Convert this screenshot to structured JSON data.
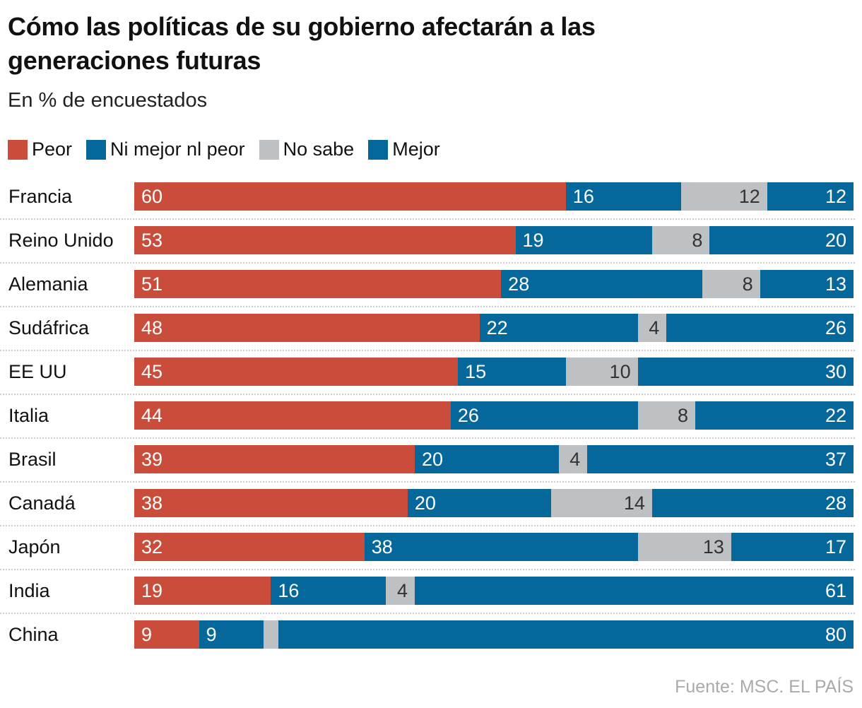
{
  "title": "Cómo las políticas de su gobierno afectarán a las generaciones futuras",
  "subtitle": "En % de encuestados",
  "source": "Fuente: MSC. EL PAÍS",
  "chart_data": {
    "type": "bar",
    "stacked": true,
    "orientation": "horizontal",
    "title": "Cómo las políticas de su gobierno afectarán a las generaciones futuras",
    "subtitle": "En % de encuestados",
    "legend_position": "top-left",
    "grid": false,
    "xlim": [
      0,
      100
    ],
    "categories": [
      "Francia",
      "Reino Unido",
      "Alemania",
      "Sudáfrica",
      "EE UU",
      "Italia",
      "Brasil",
      "Canadá",
      "Japón",
      "India",
      "China"
    ],
    "series": [
      {
        "name": "Peor",
        "color": "#c94d3a",
        "values": [
          60,
          53,
          51,
          48,
          45,
          44,
          39,
          38,
          32,
          19,
          9
        ]
      },
      {
        "name": "Ni mejor nl peor",
        "color": "#06689a",
        "values": [
          16,
          19,
          28,
          22,
          15,
          26,
          20,
          20,
          38,
          16,
          9
        ]
      },
      {
        "name": "No sabe",
        "color": "#bdc1c4",
        "values": [
          12,
          8,
          8,
          4,
          10,
          8,
          4,
          14,
          13,
          4,
          2
        ]
      },
      {
        "name": "Mejor",
        "color": "#06689a",
        "values": [
          12,
          20,
          13,
          26,
          30,
          22,
          37,
          28,
          17,
          61,
          80
        ]
      }
    ]
  }
}
